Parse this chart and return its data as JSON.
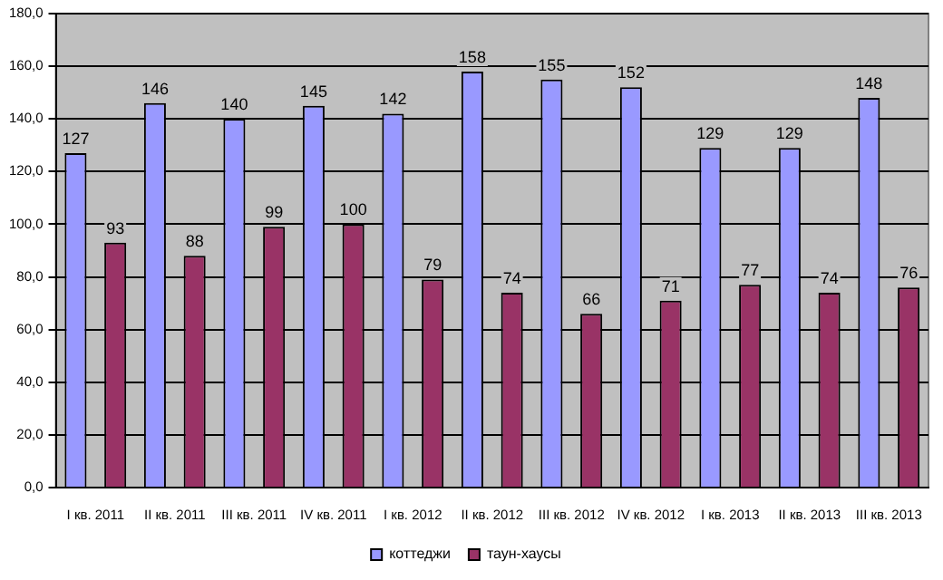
{
  "chart_data": {
    "type": "bar",
    "categories": [
      "I кв. 2011",
      "II кв. 2011",
      "III кв. 2011",
      "IV кв. 2011",
      "I кв. 2012",
      "II кв. 2012",
      "III кв. 2012",
      "IV кв. 2012",
      "I кв. 2013",
      "II кв. 2013",
      "III кв. 2013"
    ],
    "series": [
      {
        "name": "коттеджи",
        "color": "#9999ff",
        "values": [
          127,
          146,
          140,
          145,
          142,
          158,
          155,
          152,
          129,
          129,
          148
        ]
      },
      {
        "name": "таун-хаусы",
        "color": "#993366",
        "values": [
          93,
          88,
          99,
          100,
          79,
          74,
          66,
          71,
          77,
          74,
          76
        ]
      }
    ],
    "ylim": [
      0,
      180
    ],
    "yticks": [
      {
        "value": 0,
        "label": "0,0"
      },
      {
        "value": 20,
        "label": "20,0"
      },
      {
        "value": 40,
        "label": "40,0"
      },
      {
        "value": 60,
        "label": "60,0"
      },
      {
        "value": 80,
        "label": "80,0"
      },
      {
        "value": 100,
        "label": "100,0"
      },
      {
        "value": 120,
        "label": "120,0"
      },
      {
        "value": 140,
        "label": "140,0"
      },
      {
        "value": 160,
        "label": "160,0"
      },
      {
        "value": 180,
        "label": "180,0"
      }
    ],
    "grid": "y",
    "legend": "bottom",
    "data_labels": true
  }
}
